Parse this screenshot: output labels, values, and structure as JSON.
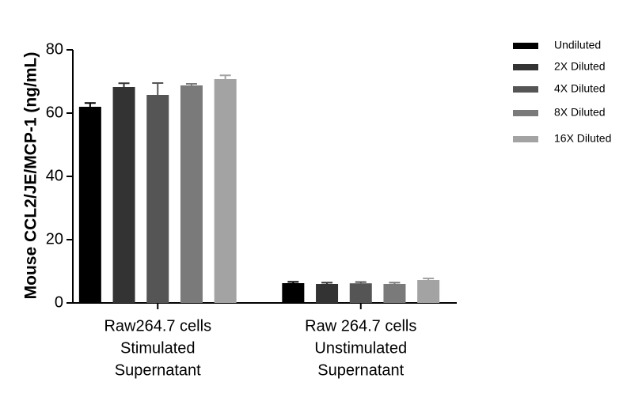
{
  "chart_data": {
    "type": "bar",
    "y_label": "Mouse CCL2/JE/MCP-1 (ng/mL)",
    "categories": [
      [
        "Raw264.7 cells",
        "Stimulated",
        "Supernatant"
      ],
      [
        "Raw 264.7 cells",
        "Unstimulated",
        "Supernatant"
      ]
    ],
    "series": [
      {
        "name": "Undiluted",
        "color": "#000000",
        "values": [
          62,
          6.25
        ],
        "errors": [
          1.2,
          0.4
        ]
      },
      {
        "name": "2X Diluted",
        "color": "#333333",
        "values": [
          68.25,
          6
        ],
        "errors": [
          1.2,
          0.4
        ]
      },
      {
        "name": "4X Diluted",
        "color": "#555555",
        "values": [
          65.75,
          6.2
        ],
        "errors": [
          3.75,
          0.4
        ]
      },
      {
        "name": "8X Diluted",
        "color": "#7a7a7a",
        "values": [
          68.75,
          6
        ],
        "errors": [
          0.5,
          0.4
        ]
      },
      {
        "name": "16X Diluted",
        "color": "#a3a3a3",
        "values": [
          70.75,
          7.25
        ],
        "errors": [
          1.2,
          0.5
        ]
      }
    ],
    "ylim": [
      0,
      80
    ],
    "yticks": [
      0,
      20,
      40,
      60,
      80
    ],
    "grid": false,
    "legend": "right"
  }
}
